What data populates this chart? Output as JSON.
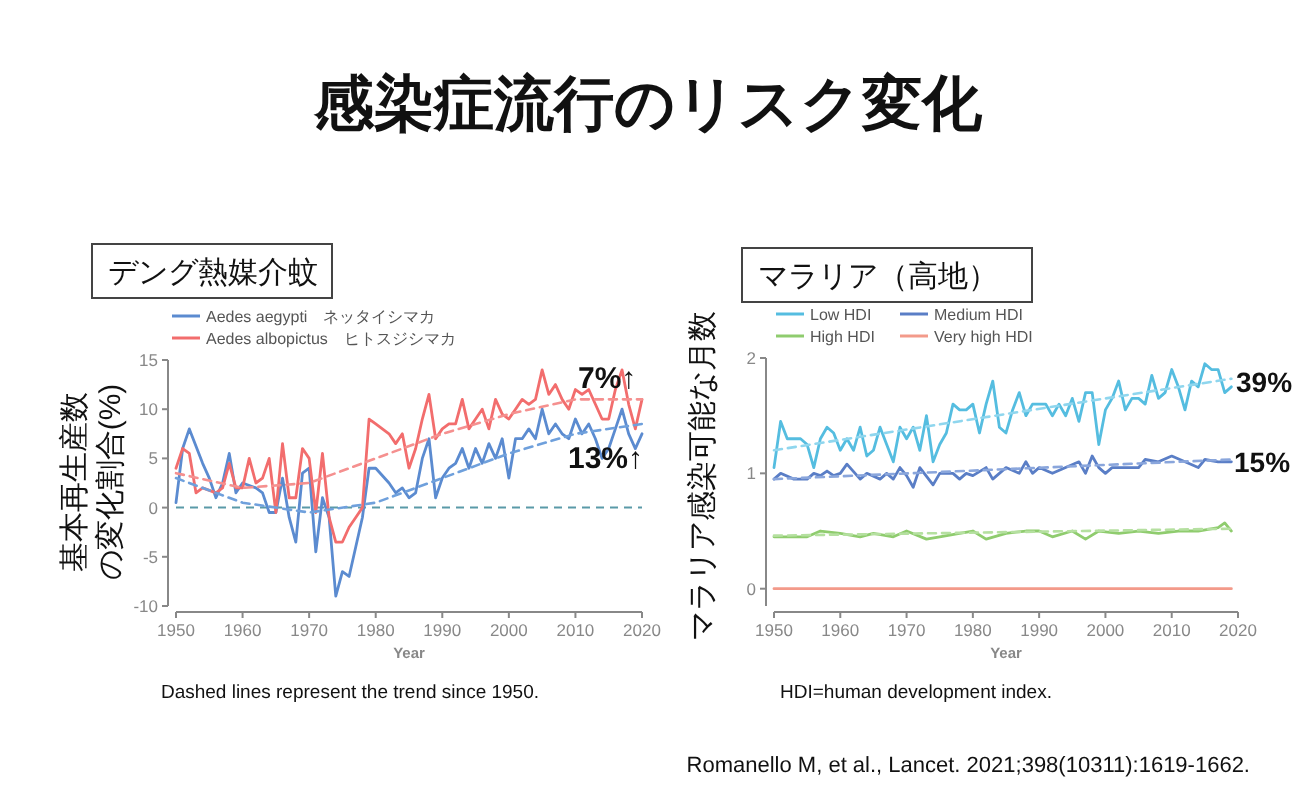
{
  "chart_data": [
    {
      "type": "other",
      "title": "感染症流行のリスク変化",
      "annotations": [
        "Romanello M, et al., Lancet. 2021;398(10311):1619-1662."
      ]
    },
    {
      "type": "line",
      "title": "デング熱媒介蚊",
      "xlabel": "Year",
      "ylabel": "基本再生産数の変化割合(%)",
      "xlim": [
        1950,
        2020
      ],
      "xticks": [
        1950,
        1960,
        1970,
        1980,
        1990,
        2000,
        2010,
        2020
      ],
      "ylim": [
        -10,
        15
      ],
      "yticks": [
        -10,
        -5,
        0,
        5,
        10,
        15
      ],
      "grid": false,
      "legend": "top",
      "ref_lines": [
        {
          "axis": "y",
          "value": 0,
          "color": "#5a9aa8",
          "line_style": "dashed"
        }
      ],
      "annotations": [
        "7%↑",
        "13%↑",
        "Dashed lines represent the trend since 1950."
      ],
      "series": [
        {
          "name": "Aedes aegypti　ネッタイシマカ",
          "color": "#5b8bd0",
          "x": [
            1950,
            1951,
            1952,
            1954,
            1955,
            1956,
            1957,
            1958,
            1959,
            1960,
            1962,
            1963,
            1964,
            1965,
            1966,
            1967,
            1968,
            1969,
            1970,
            1971,
            1972,
            1973,
            1974,
            1975,
            1976,
            1977,
            1978,
            1979,
            1980,
            1982,
            1983,
            1984,
            1985,
            1986,
            1987,
            1988,
            1989,
            1990,
            1991,
            1992,
            1993,
            1994,
            1995,
            1996,
            1997,
            1998,
            1999,
            2000,
            2001,
            2002,
            2003,
            2004,
            2005,
            2006,
            2007,
            2008,
            2009,
            2010,
            2011,
            2012,
            2013,
            2014,
            2015,
            2016,
            2017,
            2018,
            2019,
            2020
          ],
          "values": [
            0.5,
            6,
            8,
            4.5,
            3,
            1,
            2.5,
            5.5,
            1.5,
            2.5,
            2,
            1.5,
            -0.5,
            -0.5,
            3,
            -1,
            -3.5,
            3.5,
            4,
            -4.5,
            1,
            -1,
            -9,
            -6.5,
            -7,
            -4,
            -1,
            4,
            4,
            2.5,
            1.5,
            2,
            1,
            1.5,
            5,
            7,
            1,
            3,
            4,
            4.5,
            6,
            4,
            6,
            4.5,
            6.5,
            5,
            7,
            3,
            7,
            7,
            8,
            7,
            10,
            7.5,
            8.5,
            7.5,
            7,
            9,
            7.5,
            8.5,
            7,
            5,
            6,
            8,
            10,
            7.5,
            6,
            7.5
          ]
        },
        {
          "name": "Aedes albopictus　ヒトスジシマカ",
          "color": "#f26d6d",
          "x": [
            1950,
            1951,
            1952,
            1953,
            1954,
            1956,
            1957,
            1958,
            1959,
            1960,
            1961,
            1962,
            1963,
            1964,
            1965,
            1966,
            1967,
            1968,
            1969,
            1970,
            1971,
            1972,
            1973,
            1974,
            1975,
            1976,
            1977,
            1978,
            1979,
            1980,
            1982,
            1983,
            1984,
            1985,
            1986,
            1987,
            1988,
            1989,
            1990,
            1991,
            1992,
            1993,
            1994,
            1995,
            1996,
            1997,
            1998,
            1999,
            2000,
            2001,
            2002,
            2003,
            2004,
            2005,
            2006,
            2007,
            2008,
            2009,
            2010,
            2011,
            2012,
            2013,
            2014,
            2015,
            2016,
            2017,
            2018,
            2019,
            2020
          ],
          "values": [
            4,
            6,
            5.5,
            1.5,
            2,
            1.5,
            2,
            4.5,
            2,
            2,
            5,
            2.5,
            3,
            5,
            -0.5,
            6.5,
            1,
            1,
            6,
            5,
            -0.5,
            5.5,
            -1,
            -3.5,
            -3.5,
            -2,
            -1,
            0,
            9,
            8.5,
            7.5,
            6.5,
            7.5,
            4,
            6,
            9,
            11.5,
            7,
            8,
            8.5,
            8.5,
            11,
            8,
            9,
            10,
            8,
            11,
            9.5,
            9,
            10,
            11,
            10.5,
            11,
            14,
            11.5,
            12.5,
            11,
            10,
            12,
            11.5,
            12,
            10.5,
            9,
            9,
            12,
            14,
            10.5,
            8,
            11
          ]
        },
        {
          "type": "line",
          "line_style": "dashed",
          "color": "#6fa0dc",
          "x": [
            1950,
            1960,
            1970,
            1980,
            1990,
            2000,
            2010,
            2020
          ],
          "values": [
            3,
            0.5,
            -0.5,
            0.5,
            3,
            5.5,
            7.5,
            8.5
          ]
        },
        {
          "type": "line",
          "line_style": "dashed",
          "color": "#f5908f",
          "x": [
            1950,
            1960,
            1970,
            1980,
            1990,
            2000,
            2010,
            2020
          ],
          "values": [
            3.5,
            2,
            2.5,
            5,
            7.5,
            9.5,
            11,
            11
          ]
        }
      ]
    },
    {
      "type": "line",
      "title": "マラリア（高地）",
      "xlabel": "Year",
      "ylabel": "マラリア感染可能な月数",
      "xlim": [
        1950,
        2020
      ],
      "xticks": [
        1950,
        1960,
        1970,
        1980,
        1990,
        2000,
        2010,
        2020
      ],
      "ylim": [
        -0.15,
        2
      ],
      "yticks": [
        0,
        1,
        2
      ],
      "grid": false,
      "legend": "top",
      "annotations": [
        "39%",
        "15%",
        "HDI=human development index."
      ],
      "series": [
        {
          "name": "Low HDI",
          "color": "#55bde0",
          "x": [
            1950,
            1951,
            1952,
            1954,
            1955,
            1956,
            1957,
            1958,
            1959,
            1960,
            1961,
            1962,
            1963,
            1964,
            1965,
            1966,
            1967,
            1968,
            1969,
            1970,
            1971,
            1972,
            1973,
            1974,
            1975,
            1976,
            1977,
            1978,
            1979,
            1980,
            1981,
            1982,
            1983,
            1984,
            1985,
            1986,
            1987,
            1988,
            1989,
            1990,
            1991,
            1992,
            1993,
            1994,
            1995,
            1996,
            1997,
            1998,
            1999,
            2000,
            2001,
            2002,
            2003,
            2004,
            2005,
            2006,
            2007,
            2008,
            2009,
            2010,
            2011,
            2012,
            2013,
            2014,
            2015,
            2016,
            2017,
            2018,
            2019
          ],
          "values": [
            1.05,
            1.45,
            1.3,
            1.3,
            1.25,
            1.05,
            1.3,
            1.4,
            1.35,
            1.2,
            1.3,
            1.2,
            1.4,
            1.15,
            1.2,
            1.4,
            1.25,
            1.1,
            1.4,
            1.3,
            1.4,
            1.2,
            1.5,
            1.1,
            1.25,
            1.35,
            1.6,
            1.55,
            1.55,
            1.6,
            1.35,
            1.6,
            1.8,
            1.4,
            1.35,
            1.55,
            1.7,
            1.5,
            1.6,
            1.6,
            1.6,
            1.5,
            1.6,
            1.5,
            1.65,
            1.45,
            1.7,
            1.7,
            1.25,
            1.55,
            1.65,
            1.8,
            1.55,
            1.65,
            1.65,
            1.6,
            1.85,
            1.65,
            1.7,
            1.9,
            1.75,
            1.55,
            1.8,
            1.75,
            1.95,
            1.9,
            1.9,
            1.7,
            1.75
          ]
        },
        {
          "name": "Medium HDI",
          "color": "#5a7ec6",
          "x": [
            1950,
            1951,
            1953,
            1955,
            1956,
            1957,
            1958,
            1959,
            1960,
            1961,
            1963,
            1964,
            1966,
            1967,
            1968,
            1969,
            1970,
            1971,
            1972,
            1974,
            1975,
            1977,
            1978,
            1979,
            1980,
            1982,
            1983,
            1985,
            1987,
            1988,
            1989,
            1990,
            1992,
            1994,
            1996,
            1997,
            1998,
            1999,
            2000,
            2001,
            2003,
            2005,
            2006,
            2008,
            2010,
            2012,
            2014,
            2015,
            2017,
            2019
          ],
          "values": [
            0.95,
            1,
            0.95,
            0.95,
            1,
            0.98,
            1.02,
            0.98,
            1,
            1.08,
            0.95,
            1,
            0.95,
            1,
            0.95,
            1.05,
            0.98,
            0.88,
            1.05,
            0.9,
            1,
            1,
            0.95,
            1,
            0.98,
            1.05,
            0.95,
            1.05,
            1,
            1.1,
            1,
            1.05,
            1,
            1.05,
            1.1,
            1,
            1.15,
            1.05,
            1,
            1.05,
            1.05,
            1.05,
            1.12,
            1.1,
            1.15,
            1.1,
            1.05,
            1.12,
            1.1,
            1.1
          ]
        },
        {
          "name": "High HDI",
          "color": "#8fcc6e",
          "x": [
            1950,
            1955,
            1957,
            1960,
            1963,
            1965,
            1968,
            1970,
            1973,
            1975,
            1978,
            1980,
            1982,
            1985,
            1988,
            1990,
            1992,
            1995,
            1997,
            1999,
            2002,
            2005,
            2008,
            2011,
            2014,
            2017,
            2018,
            2019
          ],
          "values": [
            0.45,
            0.45,
            0.5,
            0.48,
            0.45,
            0.48,
            0.45,
            0.5,
            0.43,
            0.45,
            0.48,
            0.5,
            0.43,
            0.48,
            0.5,
            0.5,
            0.45,
            0.5,
            0.43,
            0.5,
            0.48,
            0.5,
            0.48,
            0.5,
            0.5,
            0.53,
            0.57,
            0.5
          ]
        },
        {
          "name": "Very high HDI",
          "color": "#f39a8a",
          "x": [
            1950,
            2019
          ],
          "values": [
            0,
            0
          ]
        },
        {
          "type": "line",
          "line_style": "dashed",
          "color": "#8fd6ee",
          "x": [
            1950,
            2019
          ],
          "values": [
            1.2,
            1.82
          ]
        },
        {
          "type": "line",
          "line_style": "dashed",
          "color": "#8aa6dc",
          "x": [
            1950,
            2019
          ],
          "values": [
            0.95,
            1.12
          ]
        },
        {
          "type": "line",
          "line_style": "dashed",
          "color": "#b5e0a0",
          "x": [
            1950,
            2019
          ],
          "values": [
            0.46,
            0.52
          ]
        }
      ]
    }
  ]
}
